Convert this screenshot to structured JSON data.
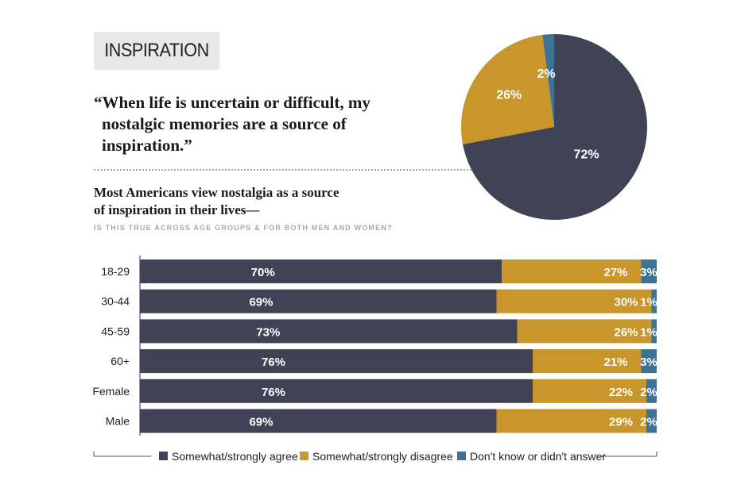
{
  "header": {
    "tag": "INSPIRATION",
    "quote_lines": [
      "“When life is uncertain or difficult, my",
      "nostalgic memories are a source of",
      "inspiration.”"
    ],
    "headline_lines": [
      "Most Americans view nostalgia as a source",
      "of inspiration in their lives—"
    ],
    "subhead": "IS THIS TRUE ACROSS AGE GROUPS & FOR BOTH MEN AND WOMEN?"
  },
  "colors": {
    "agree": "#404256",
    "disagree": "#c9962b",
    "dont_know": "#3c7296"
  },
  "chart_data": [
    {
      "type": "pie",
      "categories": [
        "Somewhat/strongly agree",
        "Somewhat/strongly disagree",
        "Don't know or didn't answer"
      ],
      "values": [
        72,
        26,
        2
      ],
      "labels": [
        "72%",
        "26%",
        "2%"
      ]
    },
    {
      "type": "bar",
      "orientation": "horizontal",
      "stacked": true,
      "categories": [
        "18-29",
        "30-44",
        "45-59",
        "60+",
        "Female",
        "Male"
      ],
      "series": [
        {
          "name": "Somewhat/strongly agree",
          "values": [
            70,
            69,
            73,
            76,
            76,
            69
          ]
        },
        {
          "name": "Somewhat/strongly disagree",
          "values": [
            27,
            30,
            26,
            21,
            22,
            29
          ]
        },
        {
          "name": "Don't know or didn't answer",
          "values": [
            3,
            1,
            1,
            3,
            2,
            2
          ]
        }
      ],
      "xlim": [
        0,
        100
      ],
      "legend": "bottom"
    }
  ]
}
